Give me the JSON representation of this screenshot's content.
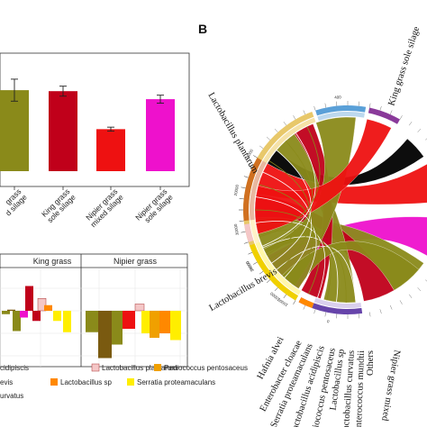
{
  "panel_b_letter": "B",
  "colors": {
    "olive": "#8a8a1a",
    "darkred": "#c0001a",
    "red": "#ee1111",
    "magenta": "#ee11cc",
    "pink": "#f4c7c7",
    "orange": "#f0a000",
    "yellow": "#ffee00",
    "brown": "#7a5a10",
    "purple": "#6644aa",
    "blue": "#4488cc",
    "black": "#000000"
  },
  "chart_data": [
    {
      "type": "bar",
      "categories": [
        "",
        "King grass sole silage",
        "Nipier grass mixed silage",
        "Nipier grass sole silage"
      ],
      "category_labels": [
        [
          "grass",
          "d silage"
        ],
        [
          "King grass",
          "sole silage"
        ],
        [
          "Nipier grass",
          "mixed silage"
        ],
        [
          "Nipier grass",
          "sole silage"
        ]
      ],
      "values": [
        0.81,
        0.8,
        0.42,
        0.72
      ],
      "errors": [
        0.11,
        0.05,
        0.02,
        0.04
      ],
      "colors": [
        "#8a8a1a",
        "#c0001a",
        "#ee1111",
        "#ee11cc"
      ],
      "ylim": [
        0,
        1
      ]
    },
    {
      "type": "bar",
      "facets": [
        "King grass",
        "Nipier grass"
      ],
      "series": [
        {
          "name": "cidipiscis",
          "color": "#8a8a1a"
        },
        {
          "name": "Lactobacillus plantarum",
          "color": "#f4c7c7"
        },
        {
          "name": "Pediococcus pentosaceus",
          "color": "#f0a000"
        },
        {
          "name": "evis",
          "color": "#7a5a10"
        },
        {
          "name": "Lactobacillus sp",
          "color": "#ff8800"
        },
        {
          "name": "Serratia proteamaculans",
          "color": "#ffee00"
        },
        {
          "name": "urvatus",
          "color": "#c0001a"
        }
      ],
      "legend": [
        {
          "label": "cidipiscis",
          "color": "#8a8a1a"
        },
        {
          "label": "Lactobacillus plantarum",
          "color": "#f4c7c7"
        },
        {
          "label": "Pediococcus pentosaceus",
          "color": "#f0a000"
        },
        {
          "label": "evis",
          "color": "#7a5a10"
        },
        {
          "label": "Lactobacillus sp",
          "color": "#ff8800"
        },
        {
          "label": "Serratia proteamaculans",
          "color": "#ffee00"
        },
        {
          "label": "urvatus",
          "color": ""
        }
      ],
      "values_king": [
        {
          "color": "#8a8a1a",
          "v": -0.15
        },
        {
          "color": "#7a5a10",
          "v": 0.05
        },
        {
          "color": "#8a8a1a",
          "v": -0.9
        },
        {
          "color": "#ee11cc",
          "v": -0.3
        },
        {
          "color": "#c0001a",
          "v": 1.1
        },
        {
          "color": "#c0001a",
          "v": -0.45
        },
        {
          "color": "#f4c7c7",
          "v": 0.55
        },
        {
          "color": "#ff8800",
          "v": 0.25
        },
        {
          "color": "#ffee00",
          "v": -0.45
        },
        {
          "color": "#ffee00",
          "v": -0.95
        }
      ],
      "values_nipier": [
        {
          "color": "#8a8a1a",
          "v": -0.95
        },
        {
          "color": "#7a5a10",
          "v": -2.1
        },
        {
          "color": "#8a8a1a",
          "v": -1.5
        },
        {
          "color": "#ee1111",
          "v": -0.8
        },
        {
          "color": "#f4c7c7",
          "v": 0.3
        },
        {
          "color": "#ffee00",
          "v": -1.0
        },
        {
          "color": "#f0a000",
          "v": -1.2
        },
        {
          "color": "#ff8800",
          "v": -1.0
        },
        {
          "color": "#ffee00",
          "v": -1.3
        }
      ]
    },
    {
      "type": "chord",
      "labels": [
        "Lactobacillus plantarum",
        "King grass sole silage",
        "Lactobacillus brevis",
        "Hafnia alvei",
        "Enterobacter cloacae",
        "Serratia proteamaculans",
        "Lactobacillus acidipiscis",
        "Pediococcus pentosaceus",
        "Lactobacillus sp",
        "Lactobacillus curvatus",
        "Enterococcus mundtii",
        "Others",
        "Nipier grass mixed"
      ],
      "ring_ticks": [
        "400",
        "8000",
        "30000",
        "20000",
        "10000",
        "0",
        "10000",
        "16000",
        "20000"
      ],
      "flows": [
        {
          "color": "#ee11cc",
          "value": 30
        },
        {
          "color": "#8a8a1a",
          "value": 28
        },
        {
          "color": "#c0001a",
          "value": 24
        },
        {
          "color": "#ee1111",
          "value": 18
        },
        {
          "color": "#000000",
          "value": 10
        }
      ]
    }
  ]
}
